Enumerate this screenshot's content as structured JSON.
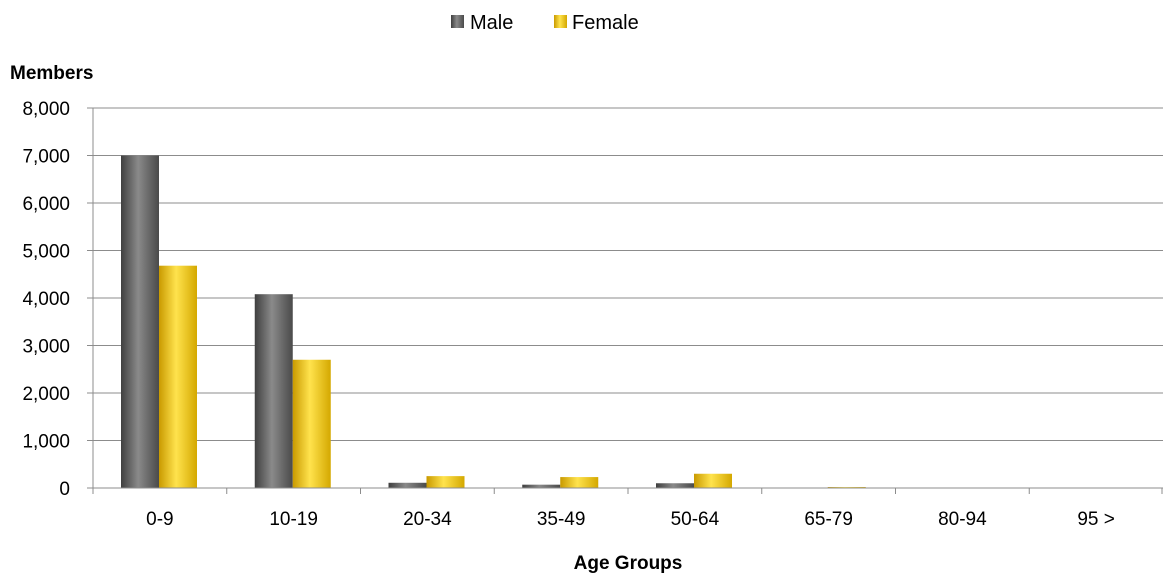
{
  "chart_data": {
    "type": "bar",
    "categories": [
      "0-9",
      "10-19",
      "20-34",
      "35-49",
      "50-64",
      "65-79",
      "80-94",
      "95 >"
    ],
    "series": [
      {
        "name": "Male",
        "values": [
          7000,
          4080,
          110,
          70,
          100,
          0,
          0,
          0
        ],
        "color": "#6e6e6e"
      },
      {
        "name": "Female",
        "values": [
          4680,
          2700,
          250,
          230,
          300,
          20,
          0,
          0
        ],
        "color": "#f2c500"
      }
    ],
    "xlabel": "Age Groups",
    "ylabel": "Members",
    "ylim": [
      0,
      8000
    ],
    "yticks": [
      0,
      1000,
      2000,
      3000,
      4000,
      5000,
      6000,
      7000,
      8000
    ],
    "ytick_labels": [
      "0",
      "1,000",
      "2,000",
      "3,000",
      "4,000",
      "5,000",
      "6,000",
      "7,000",
      "8,000"
    ],
    "grid": true,
    "legend_position": "top-center"
  }
}
